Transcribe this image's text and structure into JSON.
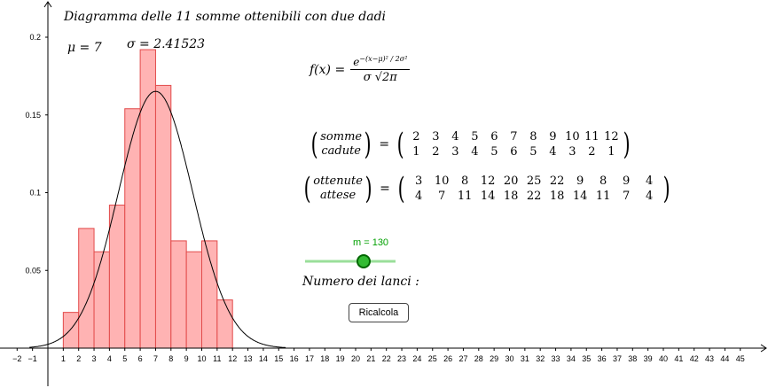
{
  "title": "Diagramma delle 11 somme ottenibili con due dadi",
  "mu_label": "μ = 7",
  "sigma_label": "σ = 2.41523",
  "formula": {
    "lhs": "f(x) =",
    "numerator_base": "e",
    "numerator_exponent": "−(x−μ)² / 2σ²",
    "denominator": "σ √2π"
  },
  "matrix1": {
    "top_label": "somme",
    "bottom_label": "cadute",
    "top": [
      "2",
      "3",
      "4",
      "5",
      "6",
      "7",
      "8",
      "9",
      "10",
      "11",
      "12"
    ],
    "bottom": [
      "1",
      "2",
      "3",
      "4",
      "5",
      "6",
      "5",
      "4",
      "3",
      "2",
      "1"
    ]
  },
  "matrix2": {
    "top_label": "ottenute",
    "bottom_label": "attese",
    "top": [
      "3",
      "10",
      "8",
      "12",
      "20",
      "25",
      "22",
      "9",
      "8",
      "9",
      "4"
    ],
    "bottom": [
      "4",
      "7",
      "11",
      "14",
      "18",
      "22",
      "18",
      "14",
      "11",
      "7",
      "4"
    ]
  },
  "slider": {
    "label": "m = 130",
    "value": 130,
    "color": "#00a000"
  },
  "numero_lanci": "Numero dei lanci :",
  "button_label": "Ricalcola",
  "chart_data": {
    "type": "bar",
    "x_ticks": [
      "−2",
      "−1",
      "1",
      "2",
      "3",
      "4",
      "5",
      "6",
      "7",
      "8",
      "9",
      "10",
      "11",
      "12",
      "13",
      "14",
      "15",
      "16",
      "17",
      "18",
      "19",
      "20",
      "21",
      "22",
      "23",
      "24",
      "25",
      "26",
      "27",
      "28",
      "29",
      "30",
      "31",
      "32",
      "33",
      "34",
      "35",
      "36",
      "37",
      "38",
      "39",
      "40",
      "41",
      "42",
      "43",
      "44",
      "45"
    ],
    "y_ticks": [
      "0.05",
      "0.1",
      "0.15",
      "0.2"
    ],
    "xlim": [
      -2.5,
      46
    ],
    "ylim": [
      -0.025,
      0.22
    ],
    "bars": {
      "x": [
        2,
        3,
        4,
        5,
        6,
        7,
        8,
        9,
        10,
        11,
        12
      ],
      "values": [
        0.023,
        0.077,
        0.062,
        0.092,
        0.154,
        0.192,
        0.169,
        0.069,
        0.062,
        0.069,
        0.031
      ],
      "fill": "#ffb3b3",
      "stroke": "#e24a4a"
    },
    "curve": {
      "type": "normal",
      "mu": 7,
      "sigma": 2.41523,
      "color": "#000000"
    }
  }
}
